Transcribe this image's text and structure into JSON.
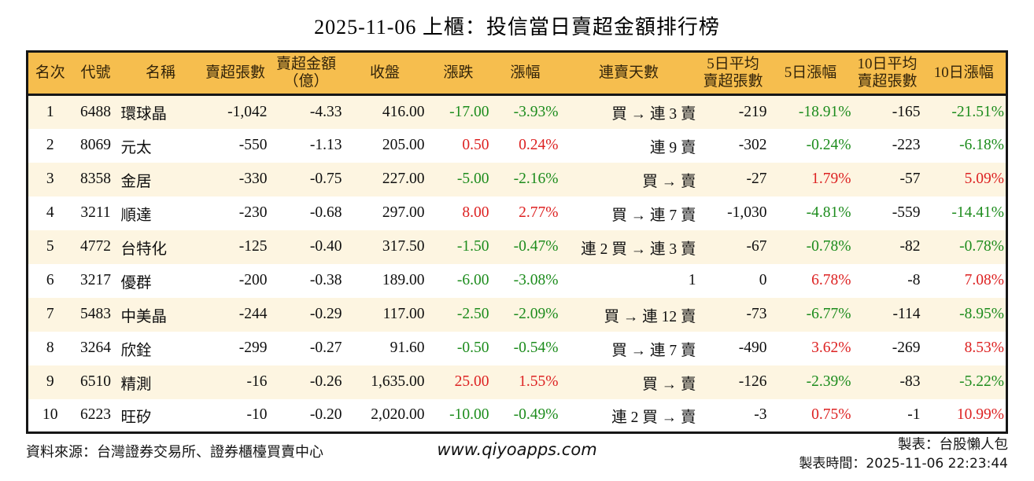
{
  "title": "2025-11-06 上櫃：投信當日賣超金額排行榜",
  "colors": {
    "up": "#dd2222",
    "down": "#1d8c1d",
    "header_bg": "#f6be4e",
    "row_alt_bg": "#fdf5e1",
    "border": "#161616"
  },
  "chart_data": {
    "type": "table",
    "title": "2025-11-06 上櫃：投信當日賣超金額排行榜",
    "columns": [
      "名次",
      "代號",
      "名稱",
      "賣超張數",
      "賣超金額\n（億）",
      "收盤",
      "漲跌",
      "漲幅",
      "連賣天數",
      "5日平均\n賣超張數",
      "5日漲幅",
      "10日平均\n賣超張數",
      "10日漲幅"
    ],
    "rows": [
      [
        "1",
        "6488",
        "環球晶",
        "-1,042",
        "-4.33",
        "416.00",
        "-17.00",
        "-3.93%",
        "買 → 連 3 賣",
        "-219",
        "-18.91%",
        "-165",
        "-21.51%"
      ],
      [
        "2",
        "8069",
        "元太",
        "-550",
        "-1.13",
        "205.00",
        "0.50",
        "0.24%",
        "連 9 賣",
        "-302",
        "-0.24%",
        "-223",
        "-6.18%"
      ],
      [
        "3",
        "8358",
        "金居",
        "-330",
        "-0.75",
        "227.00",
        "-5.00",
        "-2.16%",
        "買 → 賣",
        "-27",
        "1.79%",
        "-57",
        "5.09%"
      ],
      [
        "4",
        "3211",
        "順達",
        "-230",
        "-0.68",
        "297.00",
        "8.00",
        "2.77%",
        "買 → 連 7 賣",
        "-1,030",
        "-4.81%",
        "-559",
        "-14.41%"
      ],
      [
        "5",
        "4772",
        "台特化",
        "-125",
        "-0.40",
        "317.50",
        "-1.50",
        "-0.47%",
        "連 2 買 → 連 3 賣",
        "-67",
        "-0.78%",
        "-82",
        "-0.78%"
      ],
      [
        "6",
        "3217",
        "優群",
        "-200",
        "-0.38",
        "189.00",
        "-6.00",
        "-3.08%",
        "1",
        "0",
        "6.78%",
        "-8",
        "7.08%"
      ],
      [
        "7",
        "5483",
        "中美晶",
        "-244",
        "-0.29",
        "117.00",
        "-2.50",
        "-2.09%",
        "買 → 連 12 賣",
        "-73",
        "-6.77%",
        "-114",
        "-8.95%"
      ],
      [
        "8",
        "3264",
        "欣銓",
        "-299",
        "-0.27",
        "91.60",
        "-0.50",
        "-0.54%",
        "買 → 連 7 賣",
        "-490",
        "3.62%",
        "-269",
        "8.53%"
      ],
      [
        "9",
        "6510",
        "精測",
        "-16",
        "-0.26",
        "1,635.00",
        "25.00",
        "1.55%",
        "買 → 賣",
        "-126",
        "-2.39%",
        "-83",
        "-5.22%"
      ],
      [
        "10",
        "6223",
        "旺矽",
        "-10",
        "-0.20",
        "2,020.00",
        "-10.00",
        "-0.49%",
        "連 2 買 → 賣",
        "-3",
        "0.75%",
        "-1",
        "10.99%"
      ]
    ]
  },
  "footer": {
    "source": "資料來源：台灣證券交易所、證券櫃檯買賣中心",
    "website": "www.qiyoapps.com",
    "maker": "製表：台股懶人包",
    "timestamp": "製表時間：2025-11-06 22:23:44"
  }
}
